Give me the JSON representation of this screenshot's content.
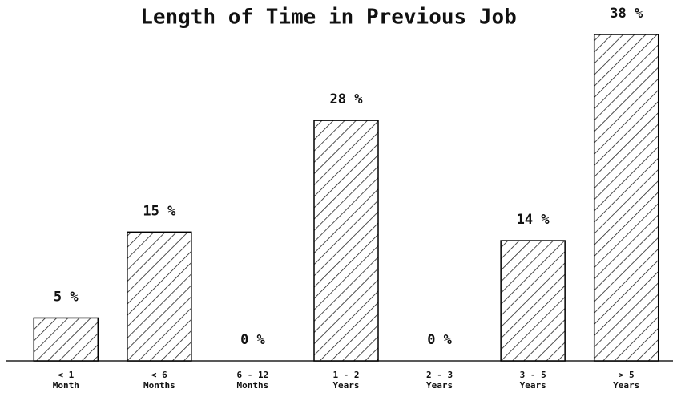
{
  "chart_data": {
    "type": "bar",
    "title": "Length of Time in Previous Job",
    "categories": [
      [
        "< 1",
        "Month"
      ],
      [
        "< 6",
        "Months"
      ],
      [
        "6 - 12",
        "Months"
      ],
      [
        "1 - 2",
        "Years"
      ],
      [
        "2 - 3",
        "Years"
      ],
      [
        "3 - 5",
        "Years"
      ],
      [
        "> 5",
        "Years"
      ]
    ],
    "values": [
      5,
      15,
      0,
      28,
      0,
      14,
      38
    ],
    "value_labels": [
      "5 %",
      "15 %",
      "0 %",
      "28 %",
      "0 %",
      "14 %",
      "38 %"
    ],
    "color": "#000000"
  }
}
